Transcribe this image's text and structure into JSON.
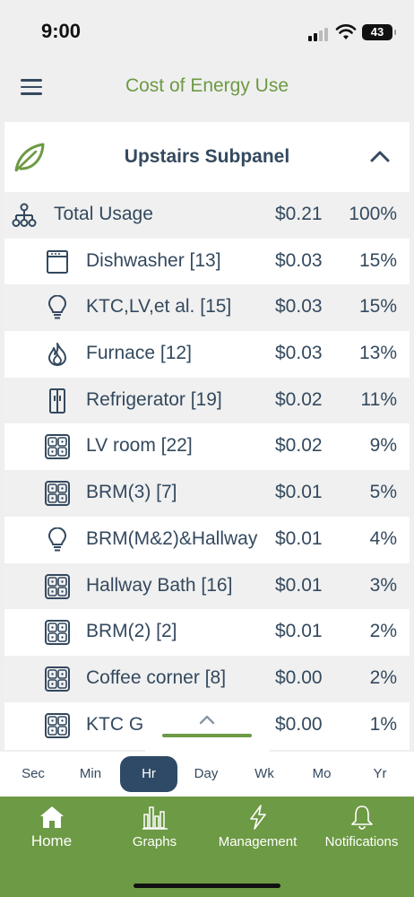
{
  "status": {
    "time": "9:00",
    "battery": "43"
  },
  "header": {
    "title": "Cost of Energy Use"
  },
  "panel": {
    "title": "Upstairs Subpanel"
  },
  "rows": [
    {
      "name": "Total Usage",
      "cost": "$0.21",
      "pct": "100%",
      "icon": "hierarchy-icon"
    },
    {
      "name": "Dishwasher [13]",
      "cost": "$0.03",
      "pct": "15%",
      "icon": "dishwasher-icon"
    },
    {
      "name": "KTC,LV,et al. [15]",
      "cost": "$0.03",
      "pct": "15%",
      "icon": "lightbulb-icon"
    },
    {
      "name": "Furnace [12]",
      "cost": "$0.03",
      "pct": "13%",
      "icon": "flame-icon"
    },
    {
      "name": "Refrigerator [19]",
      "cost": "$0.02",
      "pct": "11%",
      "icon": "refrigerator-icon"
    },
    {
      "name": "LV room [22]",
      "cost": "$0.02",
      "pct": "9%",
      "icon": "outlet-icon"
    },
    {
      "name": "BRM(3) [7]",
      "cost": "$0.01",
      "pct": "5%",
      "icon": "outlet-icon"
    },
    {
      "name": "BRM(M&2)&Hallway",
      "cost": "$0.01",
      "pct": "4%",
      "icon": "lightbulb-icon"
    },
    {
      "name": "Hallway Bath [16]",
      "cost": "$0.01",
      "pct": "3%",
      "icon": "outlet-icon"
    },
    {
      "name": "BRM(2) [2]",
      "cost": "$0.01",
      "pct": "2%",
      "icon": "outlet-icon"
    },
    {
      "name": "Coffee corner [8]",
      "cost": "$0.00",
      "pct": "2%",
      "icon": "outlet-icon"
    },
    {
      "name": "KTC G",
      "cost": "$0.00",
      "pct": "1%",
      "icon": "outlet-icon"
    }
  ],
  "time_ranges": [
    "Sec",
    "Min",
    "Hr",
    "Day",
    "Wk",
    "Mo",
    "Yr"
  ],
  "active_range": "Hr",
  "nav": [
    {
      "label": "Home",
      "icon": "home-icon"
    },
    {
      "label": "Graphs",
      "icon": "bar-chart-icon"
    },
    {
      "label": "Management",
      "icon": "lightning-icon"
    },
    {
      "label": "Notifications",
      "icon": "bell-icon"
    }
  ],
  "colors": {
    "accent_green": "#6d9a44",
    "navy": "#34495e",
    "active_tab": "#2f4a66"
  }
}
